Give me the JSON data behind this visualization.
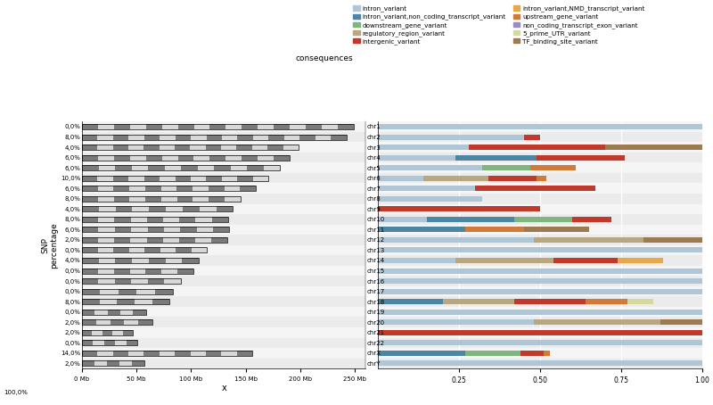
{
  "chromosomes": [
    "chr1",
    "chr2",
    "chr3",
    "chr4",
    "chr5",
    "chr6",
    "chr7",
    "chr8",
    "chr9",
    "chr10",
    "chr11",
    "chr12",
    "chr13",
    "chr14",
    "chr15",
    "chr16",
    "chr17",
    "chr18",
    "chr19",
    "chr20",
    "chr21",
    "chr22",
    "chrX",
    "chrY"
  ],
  "snp_percentages": [
    "0,0%",
    "8,0%",
    "4,0%",
    "6,0%",
    "6,0%",
    "10,0%",
    "6,0%",
    "8,0%",
    "4,0%",
    "8,0%",
    "6,0%",
    "2,0%",
    "0,0%",
    "4,0%",
    "0,0%",
    "0,0%",
    "0,0%",
    "8,0%",
    "0,0%",
    "2,0%",
    "2,0%",
    "0,0%",
    "14,0%",
    "2,0%"
  ],
  "total_snp_pct": "100,0%",
  "chr_lengths_mb": [
    248.956,
    242.193,
    198.295,
    190.214,
    181.538,
    170.805,
    159.345,
    145.138,
    138.394,
    133.797,
    135.086,
    133.275,
    114.364,
    107.043,
    101.991,
    90.338,
    83.257,
    80.373,
    58.617,
    64.444,
    46.709,
    50.818,
    156.04,
    57.227
  ],
  "bar_data": {
    "chr1": {
      "intron_variant": 1.0,
      "intron_variant_non_coding_transcript_variant": 0.0,
      "downstream_gene_variant": 0.0,
      "regulatory_region_variant": 0.0,
      "intergenic_variant": 0.0,
      "intron_variant_NMD_transcript_variant": 0.0,
      "upstream_gene_variant": 0.0,
      "non_coding_transcript_exon_variant": 0.0,
      "5_prime_UTR_variant": 0.0,
      "TF_binding_site_variant": 0.0
    },
    "chr2": {
      "intron_variant": 0.45,
      "intron_variant_non_coding_transcript_variant": 0.0,
      "downstream_gene_variant": 0.0,
      "regulatory_region_variant": 0.0,
      "intergenic_variant": 0.05,
      "intron_variant_NMD_transcript_variant": 0.0,
      "upstream_gene_variant": 0.0,
      "non_coding_transcript_exon_variant": 0.0,
      "5_prime_UTR_variant": 0.0,
      "TF_binding_site_variant": 0.0
    },
    "chr3": {
      "intron_variant": 0.28,
      "intron_variant_non_coding_transcript_variant": 0.0,
      "downstream_gene_variant": 0.0,
      "regulatory_region_variant": 0.0,
      "intergenic_variant": 0.42,
      "intron_variant_NMD_transcript_variant": 0.0,
      "upstream_gene_variant": 0.0,
      "non_coding_transcript_exon_variant": 0.0,
      "5_prime_UTR_variant": 0.0,
      "TF_binding_site_variant": 0.3
    },
    "chr4": {
      "intron_variant": 0.24,
      "intron_variant_non_coding_transcript_variant": 0.25,
      "downstream_gene_variant": 0.0,
      "regulatory_region_variant": 0.0,
      "intergenic_variant": 0.27,
      "intron_variant_NMD_transcript_variant": 0.0,
      "upstream_gene_variant": 0.0,
      "non_coding_transcript_exon_variant": 0.0,
      "5_prime_UTR_variant": 0.0,
      "TF_binding_site_variant": 0.0
    },
    "chr5": {
      "intron_variant": 0.32,
      "intron_variant_non_coding_transcript_variant": 0.0,
      "downstream_gene_variant": 0.15,
      "regulatory_region_variant": 0.0,
      "intergenic_variant": 0.0,
      "intron_variant_NMD_transcript_variant": 0.0,
      "upstream_gene_variant": 0.14,
      "non_coding_transcript_exon_variant": 0.0,
      "5_prime_UTR_variant": 0.0,
      "TF_binding_site_variant": 0.0
    },
    "chr6": {
      "intron_variant": 0.14,
      "intron_variant_non_coding_transcript_variant": 0.0,
      "downstream_gene_variant": 0.0,
      "regulatory_region_variant": 0.2,
      "intergenic_variant": 0.15,
      "intron_variant_NMD_transcript_variant": 0.0,
      "upstream_gene_variant": 0.03,
      "non_coding_transcript_exon_variant": 0.0,
      "5_prime_UTR_variant": 0.0,
      "TF_binding_site_variant": 0.0
    },
    "chr7": {
      "intron_variant": 0.3,
      "intron_variant_non_coding_transcript_variant": 0.0,
      "downstream_gene_variant": 0.0,
      "regulatory_region_variant": 0.0,
      "intergenic_variant": 0.37,
      "intron_variant_NMD_transcript_variant": 0.0,
      "upstream_gene_variant": 0.0,
      "non_coding_transcript_exon_variant": 0.0,
      "5_prime_UTR_variant": 0.0,
      "TF_binding_site_variant": 0.0
    },
    "chr8": {
      "intron_variant": 0.32,
      "intron_variant_non_coding_transcript_variant": 0.0,
      "downstream_gene_variant": 0.0,
      "regulatory_region_variant": 0.0,
      "intergenic_variant": 0.0,
      "intron_variant_NMD_transcript_variant": 0.0,
      "upstream_gene_variant": 0.0,
      "non_coding_transcript_exon_variant": 0.0,
      "5_prime_UTR_variant": 0.0,
      "TF_binding_site_variant": 0.0
    },
    "chr9": {
      "intron_variant": 0.0,
      "intron_variant_non_coding_transcript_variant": 0.0,
      "downstream_gene_variant": 0.0,
      "regulatory_region_variant": 0.0,
      "intergenic_variant": 0.5,
      "intron_variant_NMD_transcript_variant": 0.0,
      "upstream_gene_variant": 0.0,
      "non_coding_transcript_exon_variant": 0.0,
      "5_prime_UTR_variant": 0.0,
      "TF_binding_site_variant": 0.0
    },
    "chr10": {
      "intron_variant": 0.15,
      "intron_variant_non_coding_transcript_variant": 0.27,
      "downstream_gene_variant": 0.18,
      "regulatory_region_variant": 0.0,
      "intergenic_variant": 0.12,
      "intron_variant_NMD_transcript_variant": 0.0,
      "upstream_gene_variant": 0.0,
      "non_coding_transcript_exon_variant": 0.0,
      "5_prime_UTR_variant": 0.0,
      "TF_binding_site_variant": 0.0
    },
    "chr11": {
      "intron_variant": 0.0,
      "intron_variant_non_coding_transcript_variant": 0.27,
      "downstream_gene_variant": 0.0,
      "regulatory_region_variant": 0.0,
      "intergenic_variant": 0.0,
      "intron_variant_NMD_transcript_variant": 0.0,
      "upstream_gene_variant": 0.18,
      "non_coding_transcript_exon_variant": 0.0,
      "5_prime_UTR_variant": 0.0,
      "TF_binding_site_variant": 0.2
    },
    "chr12": {
      "intron_variant": 0.48,
      "intron_variant_non_coding_transcript_variant": 0.0,
      "downstream_gene_variant": 0.0,
      "regulatory_region_variant": 0.34,
      "intergenic_variant": 0.0,
      "intron_variant_NMD_transcript_variant": 0.0,
      "upstream_gene_variant": 0.0,
      "non_coding_transcript_exon_variant": 0.0,
      "5_prime_UTR_variant": 0.0,
      "TF_binding_site_variant": 0.18
    },
    "chr13": {
      "intron_variant": 1.0,
      "intron_variant_non_coding_transcript_variant": 0.0,
      "downstream_gene_variant": 0.0,
      "regulatory_region_variant": 0.0,
      "intergenic_variant": 0.0,
      "intron_variant_NMD_transcript_variant": 0.0,
      "upstream_gene_variant": 0.0,
      "non_coding_transcript_exon_variant": 0.0,
      "5_prime_UTR_variant": 0.0,
      "TF_binding_site_variant": 0.0
    },
    "chr14": {
      "intron_variant": 0.24,
      "intron_variant_non_coding_transcript_variant": 0.0,
      "downstream_gene_variant": 0.0,
      "regulatory_region_variant": 0.3,
      "intergenic_variant": 0.2,
      "intron_variant_NMD_transcript_variant": 0.14,
      "upstream_gene_variant": 0.0,
      "non_coding_transcript_exon_variant": 0.0,
      "5_prime_UTR_variant": 0.0,
      "TF_binding_site_variant": 0.0
    },
    "chr15": {
      "intron_variant": 1.0,
      "intron_variant_non_coding_transcript_variant": 0.0,
      "downstream_gene_variant": 0.0,
      "regulatory_region_variant": 0.0,
      "intergenic_variant": 0.0,
      "intron_variant_NMD_transcript_variant": 0.0,
      "upstream_gene_variant": 0.0,
      "non_coding_transcript_exon_variant": 0.0,
      "5_prime_UTR_variant": 0.0,
      "TF_binding_site_variant": 0.0
    },
    "chr16": {
      "intron_variant": 1.0,
      "intron_variant_non_coding_transcript_variant": 0.0,
      "downstream_gene_variant": 0.0,
      "regulatory_region_variant": 0.0,
      "intergenic_variant": 0.0,
      "intron_variant_NMD_transcript_variant": 0.0,
      "upstream_gene_variant": 0.0,
      "non_coding_transcript_exon_variant": 0.0,
      "5_prime_UTR_variant": 0.0,
      "TF_binding_site_variant": 0.0
    },
    "chr17": {
      "intron_variant": 1.0,
      "intron_variant_non_coding_transcript_variant": 0.0,
      "downstream_gene_variant": 0.0,
      "regulatory_region_variant": 0.0,
      "intergenic_variant": 0.0,
      "intron_variant_NMD_transcript_variant": 0.0,
      "upstream_gene_variant": 0.0,
      "non_coding_transcript_exon_variant": 0.0,
      "5_prime_UTR_variant": 0.0,
      "TF_binding_site_variant": 0.0
    },
    "chr18": {
      "intron_variant": 0.0,
      "intron_variant_non_coding_transcript_variant": 0.2,
      "downstream_gene_variant": 0.0,
      "regulatory_region_variant": 0.22,
      "intergenic_variant": 0.22,
      "intron_variant_NMD_transcript_variant": 0.0,
      "upstream_gene_variant": 0.13,
      "non_coding_transcript_exon_variant": 0.0,
      "5_prime_UTR_variant": 0.08,
      "TF_binding_site_variant": 0.0
    },
    "chr19": {
      "intron_variant": 1.0,
      "intron_variant_non_coding_transcript_variant": 0.0,
      "downstream_gene_variant": 0.0,
      "regulatory_region_variant": 0.0,
      "intergenic_variant": 0.0,
      "intron_variant_NMD_transcript_variant": 0.0,
      "upstream_gene_variant": 0.0,
      "non_coding_transcript_exon_variant": 0.0,
      "5_prime_UTR_variant": 0.0,
      "TF_binding_site_variant": 0.0
    },
    "chr20": {
      "intron_variant": 0.48,
      "intron_variant_non_coding_transcript_variant": 0.0,
      "downstream_gene_variant": 0.0,
      "regulatory_region_variant": 0.39,
      "intergenic_variant": 0.0,
      "intron_variant_NMD_transcript_variant": 0.0,
      "upstream_gene_variant": 0.0,
      "non_coding_transcript_exon_variant": 0.0,
      "5_prime_UTR_variant": 0.0,
      "TF_binding_site_variant": 0.13
    },
    "chr21": {
      "intron_variant": 0.0,
      "intron_variant_non_coding_transcript_variant": 0.0,
      "downstream_gene_variant": 0.0,
      "regulatory_region_variant": 0.0,
      "intergenic_variant": 1.0,
      "intron_variant_NMD_transcript_variant": 0.0,
      "upstream_gene_variant": 0.0,
      "non_coding_transcript_exon_variant": 0.0,
      "5_prime_UTR_variant": 0.0,
      "TF_binding_site_variant": 0.0
    },
    "chr22": {
      "intron_variant": 1.0,
      "intron_variant_non_coding_transcript_variant": 0.0,
      "downstream_gene_variant": 0.0,
      "regulatory_region_variant": 0.0,
      "intergenic_variant": 0.0,
      "intron_variant_NMD_transcript_variant": 0.0,
      "upstream_gene_variant": 0.0,
      "non_coding_transcript_exon_variant": 0.0,
      "5_prime_UTR_variant": 0.0,
      "TF_binding_site_variant": 0.0
    },
    "chrX": {
      "intron_variant": 0.0,
      "intron_variant_non_coding_transcript_variant": 0.27,
      "downstream_gene_variant": 0.17,
      "regulatory_region_variant": 0.0,
      "intergenic_variant": 0.07,
      "intron_variant_NMD_transcript_variant": 0.0,
      "upstream_gene_variant": 0.02,
      "non_coding_transcript_exon_variant": 0.0,
      "5_prime_UTR_variant": 0.0,
      "TF_binding_site_variant": 0.0
    },
    "chrY": {
      "intron_variant": 1.0,
      "intron_variant_non_coding_transcript_variant": 0.0,
      "downstream_gene_variant": 0.0,
      "regulatory_region_variant": 0.0,
      "intergenic_variant": 0.0,
      "intron_variant_NMD_transcript_variant": 0.0,
      "upstream_gene_variant": 0.0,
      "non_coding_transcript_exon_variant": 0.0,
      "5_prime_UTR_variant": 0.0,
      "TF_binding_site_variant": 0.0
    }
  },
  "consequence_order": [
    "intron_variant",
    "intron_variant_non_coding_transcript_variant",
    "downstream_gene_variant",
    "regulatory_region_variant",
    "intergenic_variant",
    "intron_variant_NMD_transcript_variant",
    "upstream_gene_variant",
    "non_coding_transcript_exon_variant",
    "5_prime_UTR_variant",
    "TF_binding_site_variant"
  ],
  "consequence_colors": {
    "intron_variant": "#aec6d6",
    "intron_variant_non_coding_transcript_variant": "#4b87a3",
    "downstream_gene_variant": "#7fb57f",
    "regulatory_region_variant": "#b8a882",
    "intergenic_variant": "#c0392b",
    "intron_variant_NMD_transcript_variant": "#e5a84b",
    "upstream_gene_variant": "#d07b3a",
    "non_coding_transcript_exon_variant": "#9b8dc0",
    "5_prime_UTR_variant": "#d5d9a0",
    "TF_binding_site_variant": "#9b7b4f"
  },
  "legend_items_col1": [
    [
      "intron_variant",
      "#aec6d6"
    ],
    [
      "intron_variant,non_coding_transcript_variant",
      "#4b87a3"
    ],
    [
      "downstream_gene_variant",
      "#7fb57f"
    ],
    [
      "regulatory_region_variant",
      "#b8a882"
    ],
    [
      "intergenic_variant",
      "#c0392b"
    ]
  ],
  "legend_items_col2": [
    [
      "intron_variant,NMD_transcript_variant",
      "#e5a84b"
    ],
    [
      "upstream_gene_variant",
      "#d07b3a"
    ],
    [
      "non_coding_transcript_exon_variant",
      "#9b8dc0"
    ],
    [
      "5_prime_UTR_variant",
      "#d5d9a0"
    ],
    [
      "TF_binding_site_variant",
      "#9b7b4f"
    ]
  ],
  "legend_title": "consequences",
  "xlabel_left": "x",
  "ylabel_left": "SNP\npercentage",
  "xlim_mb": 260,
  "xticks_mb": [
    0,
    50,
    100,
    150,
    200,
    250
  ],
  "xtick_labels_mb": [
    "0 Mb",
    "50 Mb",
    "100 Mb",
    "150 Mb",
    "200 Mb",
    "250 Mb"
  ],
  "panel_bg": "#ebebeb"
}
